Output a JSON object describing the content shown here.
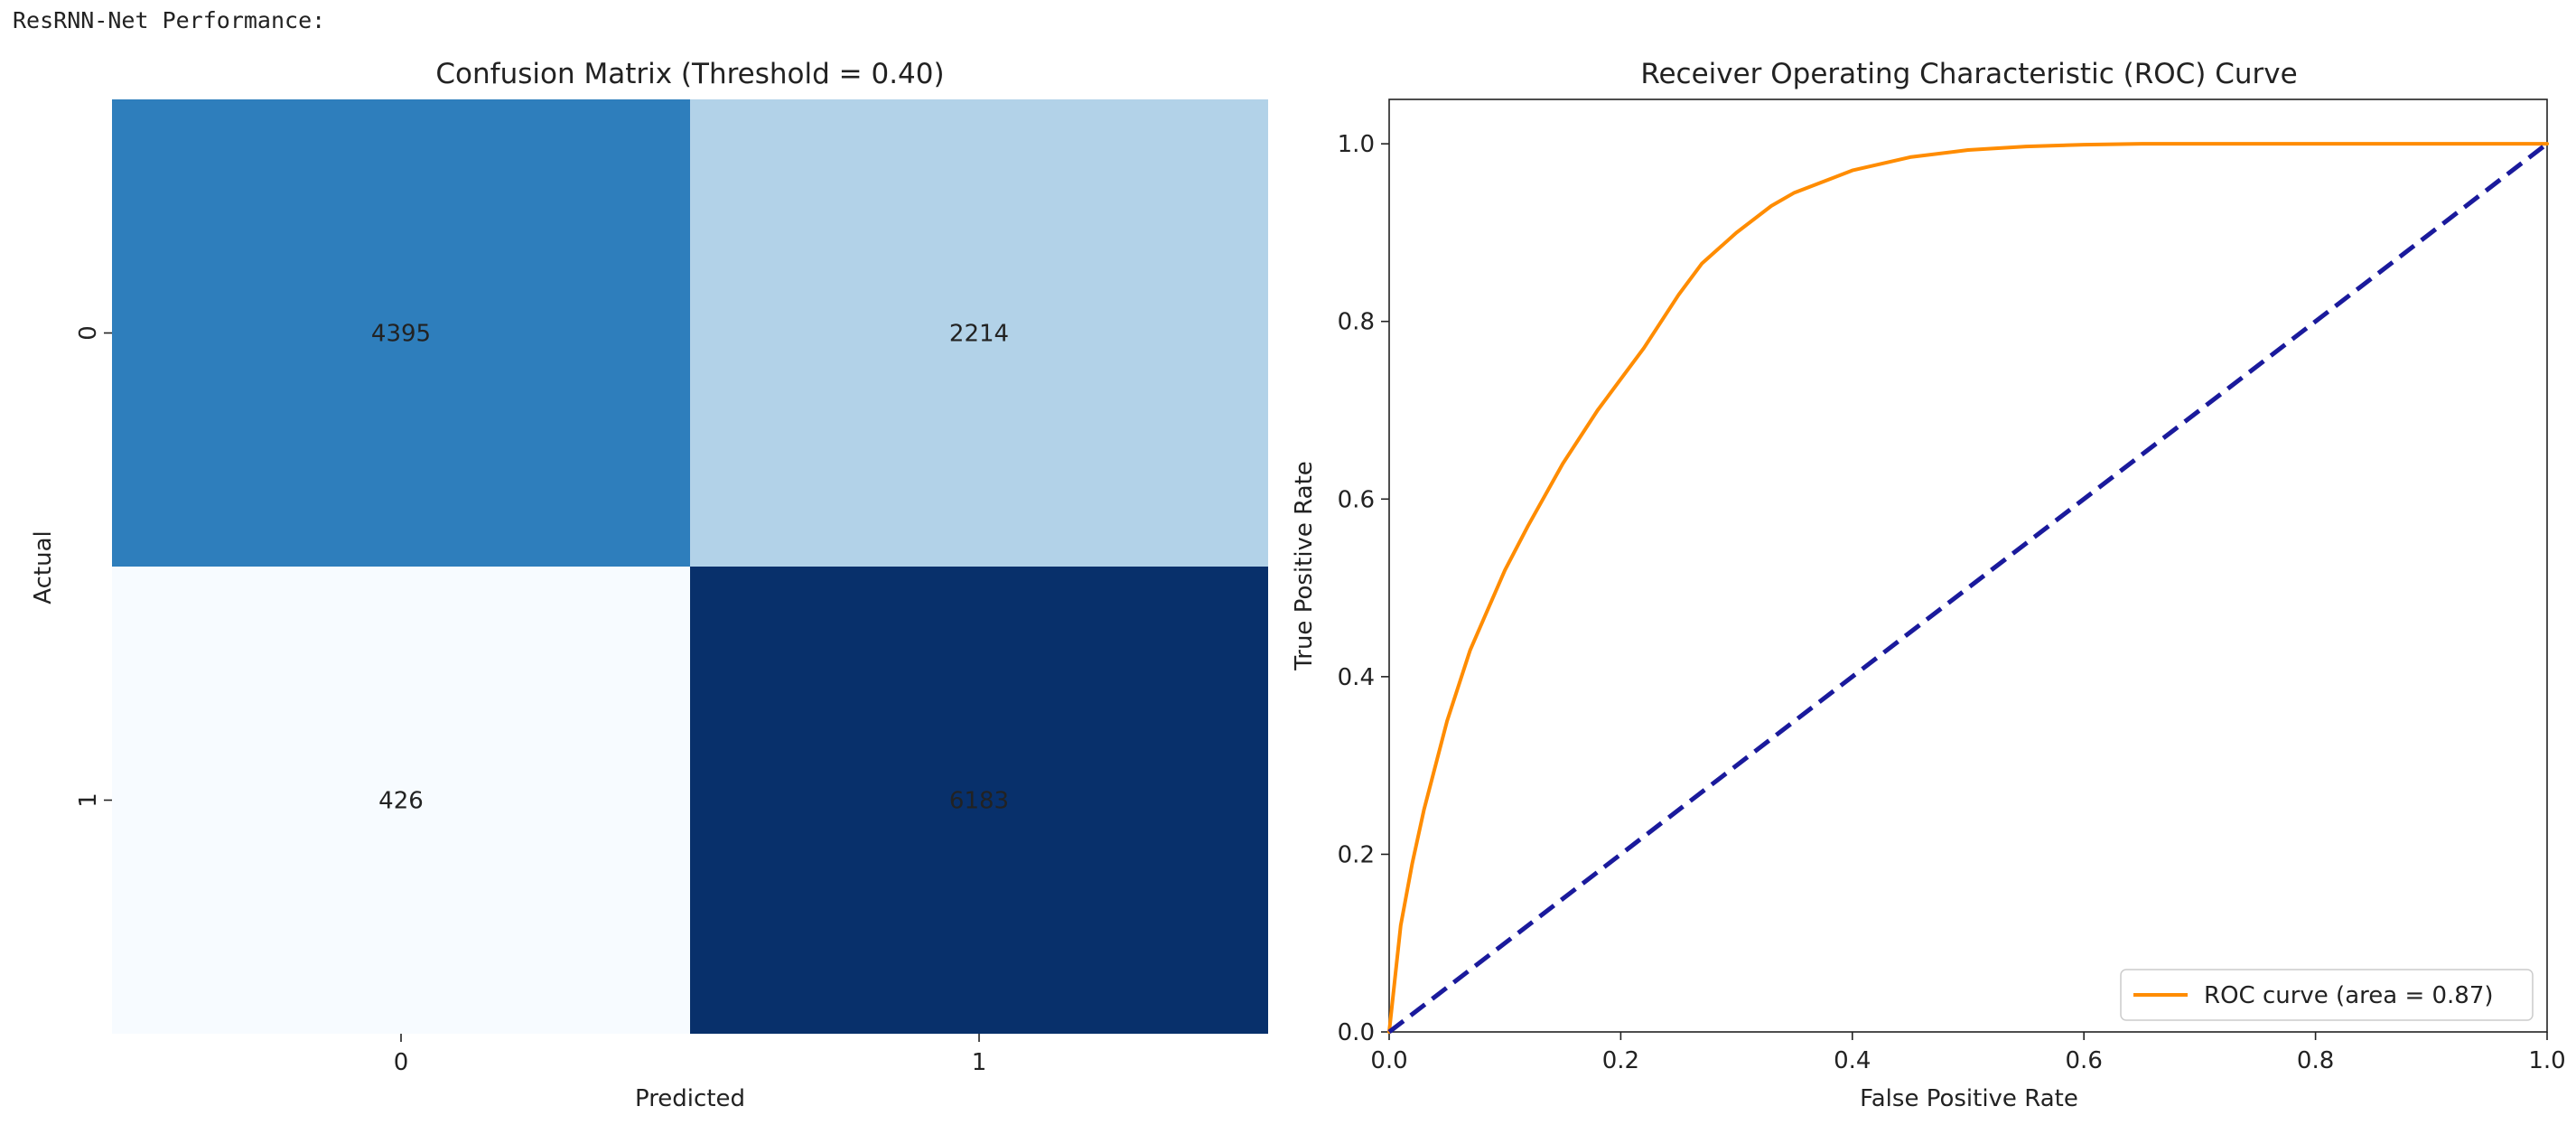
{
  "heading": "ResRNN-Net Performance:",
  "chart_data": [
    {
      "type": "heatmap",
      "title": "Confusion Matrix (Threshold = 0.40)",
      "xlabel": "Predicted",
      "ylabel": "Actual",
      "x_tick_labels": [
        "0",
        "1"
      ],
      "y_tick_labels": [
        "0",
        "1"
      ],
      "cells": [
        [
          4395,
          2214
        ],
        [
          426,
          6183
        ]
      ],
      "cell_labels": [
        [
          "4395",
          "2214"
        ],
        [
          "426",
          "6183"
        ]
      ],
      "colormap": "Blues",
      "colorbar": false,
      "colors": {
        "cell_00": "#2e7ebc",
        "cell_01": "#b2d2e8",
        "cell_10": "#f7fbff",
        "cell_11": "#08306b",
        "text_on_dark": "#ffffff",
        "text_on_light": "#262626"
      }
    },
    {
      "type": "line",
      "title": "Receiver Operating Characteristic (ROC) Curve",
      "xlabel": "False Positive Rate",
      "ylabel": "True Positive Rate",
      "xlim": [
        0.0,
        1.0
      ],
      "ylim": [
        0.0,
        1.05
      ],
      "x_ticks": [
        0.0,
        0.2,
        0.4,
        0.6,
        0.8,
        1.0
      ],
      "y_ticks": [
        0.0,
        0.2,
        0.4,
        0.6,
        0.8,
        1.0
      ],
      "x_tick_labels": [
        "0.0",
        "0.2",
        "0.4",
        "0.6",
        "0.8",
        "1.0"
      ],
      "y_tick_labels": [
        "0.0",
        "0.2",
        "0.4",
        "0.6",
        "0.8",
        "1.0"
      ],
      "grid": false,
      "legend_position": "lower-right",
      "series": [
        {
          "name": "ROC curve (area = 0.87)",
          "color": "#ff8c00",
          "style": "solid",
          "x": [
            0.0,
            0.005,
            0.01,
            0.02,
            0.03,
            0.05,
            0.07,
            0.1,
            0.12,
            0.15,
            0.18,
            0.2,
            0.22,
            0.25,
            0.27,
            0.3,
            0.33,
            0.35,
            0.38,
            0.4,
            0.45,
            0.5,
            0.55,
            0.6,
            0.65,
            0.7,
            0.8,
            0.9,
            1.0
          ],
          "y": [
            0.0,
            0.06,
            0.12,
            0.19,
            0.25,
            0.35,
            0.43,
            0.52,
            0.57,
            0.64,
            0.7,
            0.735,
            0.77,
            0.83,
            0.865,
            0.9,
            0.93,
            0.945,
            0.96,
            0.97,
            0.985,
            0.993,
            0.997,
            0.999,
            1.0,
            1.0,
            1.0,
            1.0,
            1.0
          ]
        },
        {
          "name": "",
          "color": "#1a1a9c",
          "style": "dashed",
          "x": [
            0.0,
            1.0
          ],
          "y": [
            0.0,
            1.0
          ]
        }
      ]
    }
  ]
}
